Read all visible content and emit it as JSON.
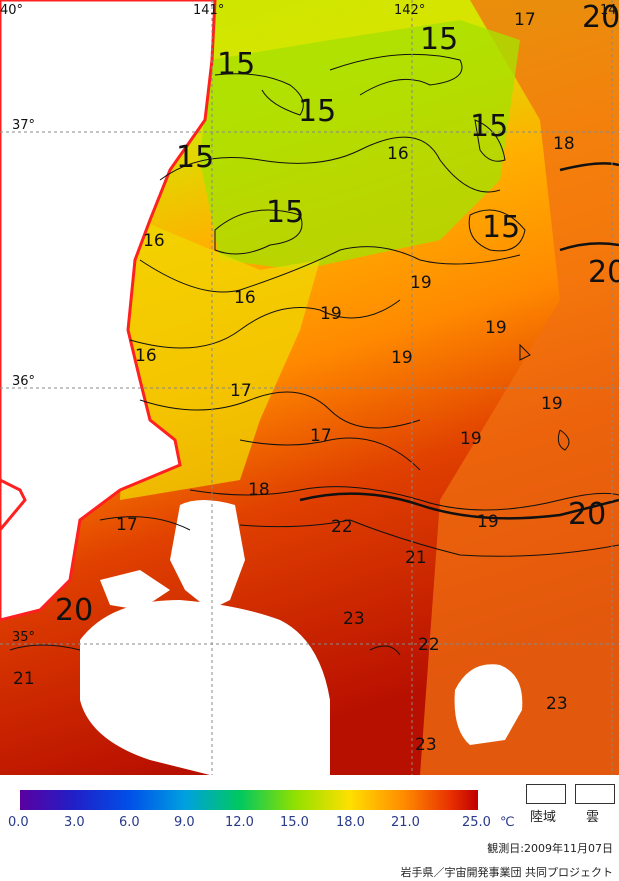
{
  "grid_labels": {
    "lon_140": "40°",
    "lon_141": "141°",
    "lon_142": "142°",
    "lon_143": "14",
    "lat_37": "37°",
    "lat_36": "36°",
    "lat_35": "35°"
  },
  "contour_labels": [
    {
      "text": "15",
      "size": "big"
    },
    {
      "text": "15",
      "size": "big"
    },
    {
      "text": "15",
      "size": "big"
    },
    {
      "text": "15",
      "size": "big"
    },
    {
      "text": "15",
      "size": "big"
    },
    {
      "text": "15",
      "size": "big"
    },
    {
      "text": "15",
      "size": "big"
    },
    {
      "text": "17",
      "size": "small"
    },
    {
      "text": "20",
      "size": "big"
    },
    {
      "text": "16",
      "size": "small"
    },
    {
      "text": "18",
      "size": "small"
    },
    {
      "text": "16",
      "size": "small"
    },
    {
      "text": "20",
      "size": "big"
    },
    {
      "text": "16",
      "size": "small"
    },
    {
      "text": "19",
      "size": "small"
    },
    {
      "text": "19",
      "size": "small"
    },
    {
      "text": "19",
      "size": "small"
    },
    {
      "text": "16",
      "size": "small"
    },
    {
      "text": "19",
      "size": "small"
    },
    {
      "text": "17",
      "size": "small"
    },
    {
      "text": "19",
      "size": "small"
    },
    {
      "text": "17",
      "size": "small"
    },
    {
      "text": "19",
      "size": "small"
    },
    {
      "text": "18",
      "size": "small"
    },
    {
      "text": "20",
      "size": "big"
    },
    {
      "text": "17",
      "size": "small"
    },
    {
      "text": "22",
      "size": "small"
    },
    {
      "text": "19",
      "size": "small"
    },
    {
      "text": "21",
      "size": "small"
    },
    {
      "text": "20",
      "size": "big"
    },
    {
      "text": "23",
      "size": "small"
    },
    {
      "text": "22",
      "size": "small"
    },
    {
      "text": "21",
      "size": "small"
    },
    {
      "text": "23",
      "size": "small"
    },
    {
      "text": "23",
      "size": "small"
    }
  ],
  "colorbar": {
    "ticks": [
      "0.0",
      "3.0",
      "6.0",
      "9.0",
      "12.0",
      "15.0",
      "18.0",
      "21.0",
      "25.0"
    ],
    "unit": "℃",
    "min": 0.0,
    "max": 25.0
  },
  "legend": {
    "land_label": "陸域",
    "cloud_label": "雲"
  },
  "observation_date": "観測日:2009年11月07日",
  "credit": "岩手県／宇宙開発事業団 共同プロジェクト",
  "colors": {
    "coast": "#ff2020",
    "land": "#ffffff",
    "cloud": "#ffffff",
    "contour": "#111111"
  }
}
